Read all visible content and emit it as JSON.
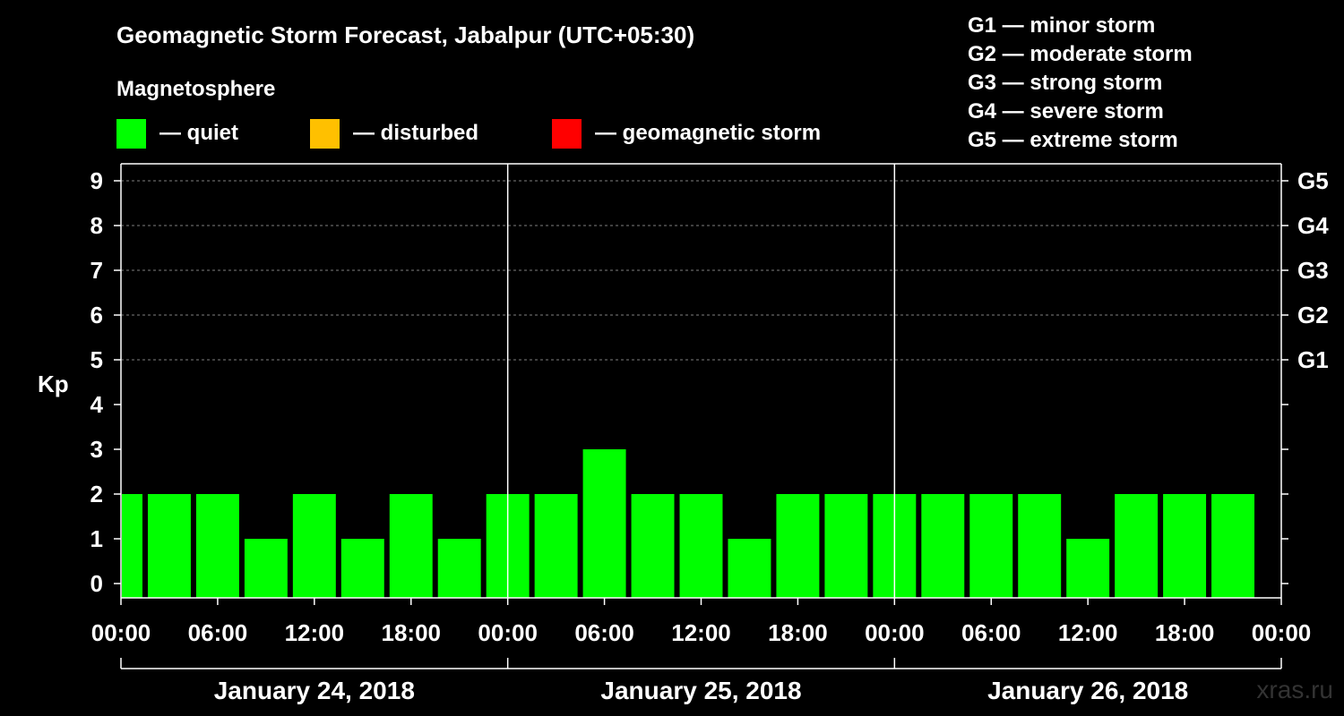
{
  "title": "Geomagnetic Storm Forecast, Jabalpur (UTC+05:30)",
  "magnetosphere_label": "Magnetosphere",
  "legend": [
    {
      "color": "#00ff00",
      "label": "— quiet"
    },
    {
      "color": "#ffc000",
      "label": "— disturbed"
    },
    {
      "color": "#ff0000",
      "label": "— geomagnetic storm"
    }
  ],
  "storm_scale": [
    "G1 — minor storm",
    "G2 — moderate storm",
    "G3 — strong storm",
    "G4 — severe storm",
    "G5 — extreme storm"
  ],
  "watermark": "xras.ru",
  "chart_data": {
    "type": "bar",
    "title": "Geomagnetic Storm Forecast, Jabalpur (UTC+05:30)",
    "ylabel": "Kp",
    "ylim": [
      0,
      9
    ],
    "yticks": [
      0,
      1,
      2,
      3,
      4,
      5,
      6,
      7,
      8,
      9
    ],
    "right_axis_labels": [
      {
        "value": 5,
        "label": "G1"
      },
      {
        "value": 6,
        "label": "G2"
      },
      {
        "value": 7,
        "label": "G3"
      },
      {
        "value": 8,
        "label": "G4"
      },
      {
        "value": 9,
        "label": "G5"
      }
    ],
    "x_tick_labels": [
      "00:00",
      "06:00",
      "12:00",
      "18:00",
      "00:00",
      "06:00",
      "12:00",
      "18:00",
      "00:00",
      "06:00",
      "12:00",
      "18:00",
      "00:00"
    ],
    "days": [
      "January 24, 2018",
      "January 25, 2018",
      "January 26, 2018"
    ],
    "bar_interval_hours": 3,
    "first_bar_start_hour": -1.5,
    "values": [
      2,
      2,
      2,
      1,
      2,
      1,
      2,
      1,
      2,
      2,
      3,
      2,
      2,
      1,
      2,
      2,
      2,
      2,
      2,
      2,
      1,
      2,
      2,
      2
    ],
    "quiet_color": "#00ff00",
    "grid": "dashed at 5-9"
  }
}
